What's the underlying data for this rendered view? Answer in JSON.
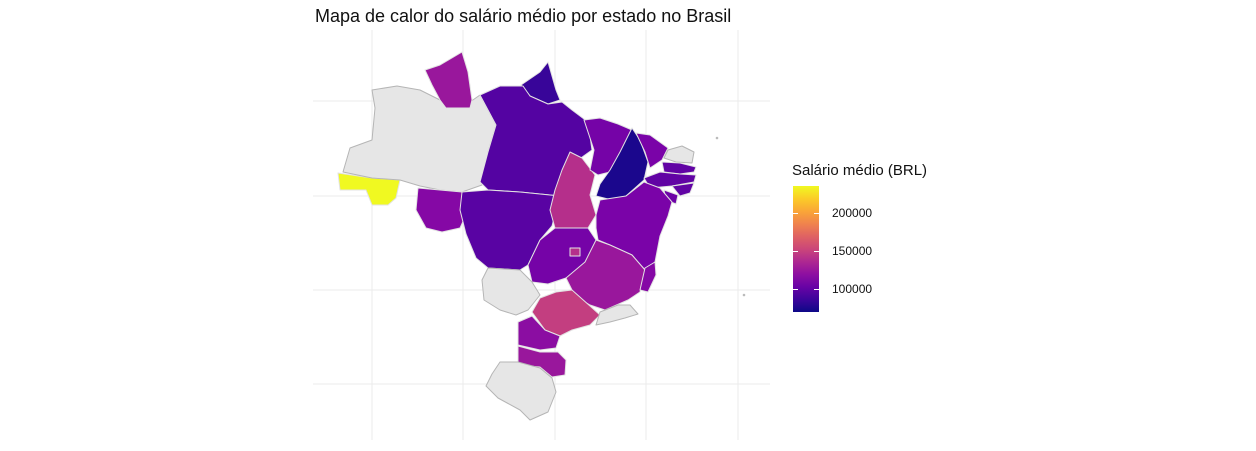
{
  "chart_data": {
    "type": "choropleth map",
    "title": "Mapa de calor do salário médio por estado no Brasil",
    "legend_title": "Salário médio (BRL)",
    "legend_placement": "right",
    "color_scale": "plasma",
    "color_range": [
      70000,
      235000
    ],
    "legend_ticks": [
      {
        "value": 100000,
        "label": "100000"
      },
      {
        "value": 150000,
        "label": "150000"
      },
      {
        "value": 200000,
        "label": "200000"
      }
    ],
    "missing_color": "#e6e6e6",
    "grid": true,
    "regions": [
      {
        "state": "AC",
        "value": 235000
      },
      {
        "state": "AM",
        "value": null
      },
      {
        "state": "RR",
        "value": 125000
      },
      {
        "state": "AP",
        "value": 85000
      },
      {
        "state": "PA",
        "value": 95000
      },
      {
        "state": "RO",
        "value": 115000
      },
      {
        "state": "MT",
        "value": 97000
      },
      {
        "state": "TO",
        "value": 140000
      },
      {
        "state": "MA",
        "value": 108000
      },
      {
        "state": "PI",
        "value": 75000
      },
      {
        "state": "CE",
        "value": 110000
      },
      {
        "state": "RN",
        "value": null
      },
      {
        "state": "PB",
        "value": 100000
      },
      {
        "state": "PE",
        "value": 100000
      },
      {
        "state": "AL",
        "value": 100000
      },
      {
        "state": "SE",
        "value": 105000
      },
      {
        "state": "BA",
        "value": 110000
      },
      {
        "state": "GO",
        "value": 108000
      },
      {
        "state": "DF",
        "value": 140000
      },
      {
        "state": "MS",
        "value": null
      },
      {
        "state": "MG",
        "value": 125000
      },
      {
        "state": "ES",
        "value": 115000
      },
      {
        "state": "SP",
        "value": 148000
      },
      {
        "state": "RJ",
        "value": null
      },
      {
        "state": "PR",
        "value": 118000
      },
      {
        "state": "SC",
        "value": 125000
      },
      {
        "state": "RS",
        "value": null
      }
    ]
  }
}
